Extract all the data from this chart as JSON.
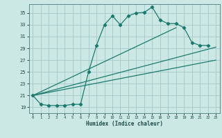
{
  "xlabel": "Humidex (Indice chaleur)",
  "bg_color": "#cce8e4",
  "grid_color": "#aacccc",
  "line_color": "#1a7a6e",
  "xlim": [
    -0.5,
    23.5
  ],
  "ylim": [
    18.0,
    36.5
  ],
  "yticks": [
    19,
    21,
    23,
    25,
    27,
    29,
    31,
    33,
    35
  ],
  "xticks": [
    0,
    1,
    2,
    3,
    4,
    5,
    6,
    7,
    8,
    9,
    10,
    11,
    12,
    13,
    14,
    15,
    16,
    17,
    18,
    19,
    20,
    21,
    22,
    23
  ],
  "main_x": [
    0,
    1,
    2,
    3,
    4,
    5,
    6,
    7,
    8,
    9,
    10,
    11,
    12,
    13,
    14,
    15,
    16,
    17,
    18,
    19,
    20,
    21,
    22
  ],
  "main_y": [
    21.0,
    19.5,
    19.3,
    19.3,
    19.3,
    19.5,
    19.5,
    25.0,
    29.5,
    33.0,
    34.5,
    33.0,
    34.5,
    35.0,
    35.1,
    36.0,
    33.8,
    33.2,
    33.2,
    32.5,
    30.0,
    29.5,
    29.5
  ],
  "line1_x": [
    0,
    18
  ],
  "line1_y": [
    21.0,
    32.5
  ],
  "line2_x": [
    0,
    23
  ],
  "line2_y": [
    21.0,
    29.2
  ],
  "line3_x": [
    0,
    23
  ],
  "line3_y": [
    21.0,
    27.0
  ]
}
